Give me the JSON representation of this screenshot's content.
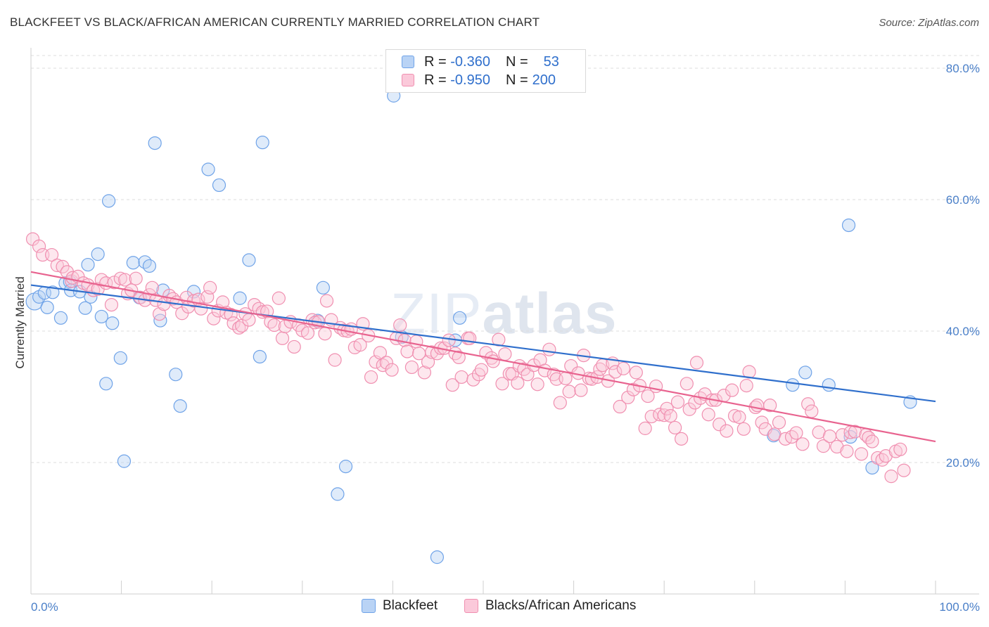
{
  "title": "BLACKFEET VS BLACK/AFRICAN AMERICAN CURRENTLY MARRIED CORRELATION CHART",
  "source": "Source: ZipAtlas.com",
  "watermark": {
    "zip": "ZIP",
    "atlas": "atlas"
  },
  "colors": {
    "blue": "#6fa3e8",
    "blue_line": "#2f6fcc",
    "pink": "#f08fb0",
    "pink_line": "#e8638f",
    "axis_label": "#4a7fc8"
  },
  "legend": {
    "rows": [
      {
        "r_label": "R =",
        "r_value": "-0.360",
        "n_label": "N =",
        "n_value": "53"
      },
      {
        "r_label": "R =",
        "r_value": "-0.950",
        "n_label": "N =",
        "n_value": "200"
      }
    ]
  },
  "bottom_legend": [
    "Blackfeet",
    "Blacks/African Americans"
  ],
  "chart_data": {
    "type": "scatter",
    "title": "BLACKFEET VS BLACK/AFRICAN AMERICAN CURRENTLY MARRIED CORRELATION CHART",
    "ylabel": "Currently Married",
    "xlabel": "",
    "xlim": [
      0,
      100
    ],
    "ylim": [
      0,
      80
    ],
    "x_tick_labels": [
      "0.0%",
      "100.0%"
    ],
    "y_tick_labels": [
      "20.0%",
      "40.0%",
      "60.0%",
      "80.0%"
    ],
    "y_ticks": [
      20,
      40,
      60,
      80
    ],
    "grid": "horizontal dashed",
    "legend_placement": "top-center",
    "series": [
      {
        "name": "Blackfeet",
        "color": "#6fa3e8",
        "trend": {
          "x": [
            0,
            100
          ],
          "y": [
            47.0,
            29.3
          ]
        },
        "points": [
          [
            0.4,
            44.5
          ],
          [
            0.9,
            45.2
          ],
          [
            1.5,
            45.8
          ],
          [
            1.8,
            43.6
          ],
          [
            2.4,
            45.9
          ],
          [
            3.3,
            42.0
          ],
          [
            3.8,
            47.3
          ],
          [
            4.3,
            47.5
          ],
          [
            4.4,
            46.2
          ],
          [
            5.4,
            46.0
          ],
          [
            6.0,
            43.5
          ],
          [
            6.3,
            50.1
          ],
          [
            6.6,
            45.2
          ],
          [
            7.4,
            51.7
          ],
          [
            7.8,
            42.2
          ],
          [
            8.3,
            32.0
          ],
          [
            8.6,
            59.8
          ],
          [
            9.0,
            41.2
          ],
          [
            9.9,
            35.9
          ],
          [
            10.3,
            20.2
          ],
          [
            11.3,
            50.4
          ],
          [
            12.0,
            45.1
          ],
          [
            12.6,
            50.5
          ],
          [
            13.1,
            49.9
          ],
          [
            13.7,
            68.6
          ],
          [
            14.3,
            41.6
          ],
          [
            14.6,
            46.2
          ],
          [
            16.0,
            33.4
          ],
          [
            16.5,
            28.6
          ],
          [
            18.0,
            46.0
          ],
          [
            19.6,
            64.6
          ],
          [
            20.8,
            62.2
          ],
          [
            23.1,
            45.0
          ],
          [
            24.1,
            50.8
          ],
          [
            25.3,
            36.1
          ],
          [
            25.6,
            68.7
          ],
          [
            31.7,
            41.6
          ],
          [
            32.3,
            46.6
          ],
          [
            33.9,
            15.2
          ],
          [
            34.8,
            19.4
          ],
          [
            40.1,
            75.8
          ],
          [
            41.0,
            39.1
          ],
          [
            44.9,
            5.6
          ],
          [
            46.9,
            38.6
          ],
          [
            47.4,
            42.0
          ],
          [
            82.1,
            24.1
          ],
          [
            84.2,
            31.8
          ],
          [
            85.6,
            33.7
          ],
          [
            88.2,
            31.8
          ],
          [
            90.4,
            56.1
          ],
          [
            90.6,
            23.9
          ],
          [
            93.0,
            19.2
          ],
          [
            97.2,
            29.2
          ]
        ]
      },
      {
        "name": "Blacks/African Americans",
        "color": "#f08fb0",
        "trend": {
          "x": [
            0,
            100
          ],
          "y": [
            49.0,
            23.2
          ]
        },
        "points": [
          [
            0.2,
            54.0
          ],
          [
            0.9,
            52.9
          ],
          [
            1.3,
            51.6
          ],
          [
            2.3,
            51.6
          ],
          [
            2.9,
            50.0
          ],
          [
            3.5,
            49.8
          ],
          [
            4.0,
            49.0
          ],
          [
            4.5,
            47.6
          ],
          [
            4.6,
            48.1
          ],
          [
            5.2,
            48.3
          ],
          [
            5.8,
            47.3
          ],
          [
            6.3,
            47.0
          ],
          [
            6.9,
            46.2
          ],
          [
            7.4,
            46.4
          ],
          [
            7.8,
            47.8
          ],
          [
            8.3,
            47.3
          ],
          [
            8.9,
            44.0
          ],
          [
            9.2,
            47.4
          ],
          [
            9.9,
            48.0
          ],
          [
            10.4,
            47.8
          ],
          [
            10.7,
            45.7
          ],
          [
            11.1,
            46.2
          ],
          [
            11.6,
            48.0
          ],
          [
            12.1,
            45.1
          ],
          [
            12.6,
            44.7
          ],
          [
            13.1,
            45.5
          ],
          [
            13.4,
            46.6
          ],
          [
            13.8,
            44.7
          ],
          [
            14.2,
            42.6
          ],
          [
            14.7,
            44.1
          ],
          [
            15.3,
            45.4
          ],
          [
            15.7,
            44.9
          ],
          [
            16.1,
            44.4
          ],
          [
            16.7,
            42.7
          ],
          [
            17.2,
            45.1
          ],
          [
            17.4,
            43.7
          ],
          [
            18.0,
            44.6
          ],
          [
            18.5,
            44.8
          ],
          [
            18.8,
            43.4
          ],
          [
            19.5,
            45.2
          ],
          [
            19.8,
            46.6
          ],
          [
            20.2,
            41.9
          ],
          [
            20.7,
            43.1
          ],
          [
            21.2,
            44.4
          ],
          [
            21.6,
            42.8
          ],
          [
            22.1,
            42.5
          ],
          [
            22.4,
            41.2
          ],
          [
            23.0,
            40.5
          ],
          [
            23.3,
            40.8
          ],
          [
            23.7,
            42.6
          ],
          [
            24.1,
            41.7
          ],
          [
            24.7,
            44.0
          ],
          [
            25.2,
            43.4
          ],
          [
            25.6,
            42.9
          ],
          [
            26.1,
            43.0
          ],
          [
            26.5,
            41.4
          ],
          [
            26.9,
            40.9
          ],
          [
            27.4,
            45.0
          ],
          [
            27.8,
            38.9
          ],
          [
            28.1,
            40.7
          ],
          [
            28.7,
            41.4
          ],
          [
            29.1,
            37.6
          ],
          [
            29.6,
            40.9
          ],
          [
            30.0,
            40.1
          ],
          [
            30.6,
            39.7
          ],
          [
            31.1,
            41.7
          ],
          [
            31.4,
            41.3
          ],
          [
            31.8,
            41.4
          ],
          [
            32.5,
            39.6
          ],
          [
            32.7,
            44.6
          ],
          [
            33.2,
            41.7
          ],
          [
            33.6,
            35.6
          ],
          [
            34.2,
            40.5
          ],
          [
            34.6,
            40.1
          ],
          [
            35.0,
            40.0
          ],
          [
            35.4,
            40.3
          ],
          [
            35.8,
            37.5
          ],
          [
            36.4,
            37.9
          ],
          [
            36.7,
            41.1
          ],
          [
            37.3,
            39.3
          ],
          [
            37.6,
            33.0
          ],
          [
            38.1,
            35.3
          ],
          [
            38.6,
            36.7
          ],
          [
            38.9,
            34.8
          ],
          [
            39.3,
            35.2
          ],
          [
            39.9,
            34.1
          ],
          [
            40.4,
            38.9
          ],
          [
            40.8,
            40.9
          ],
          [
            41.3,
            38.6
          ],
          [
            41.6,
            36.9
          ],
          [
            42.1,
            34.5
          ],
          [
            42.6,
            38.4
          ],
          [
            42.9,
            36.6
          ],
          [
            43.5,
            33.7
          ],
          [
            43.9,
            35.3
          ],
          [
            44.3,
            36.8
          ],
          [
            44.9,
            36.6
          ],
          [
            45.3,
            37.4
          ],
          [
            45.7,
            37.4
          ],
          [
            46.2,
            38.6
          ],
          [
            46.6,
            31.8
          ],
          [
            46.9,
            36.6
          ],
          [
            47.3,
            36.0
          ],
          [
            47.6,
            33.0
          ],
          [
            48.3,
            38.9
          ],
          [
            48.5,
            38.9
          ],
          [
            48.9,
            32.6
          ],
          [
            49.5,
            33.4
          ],
          [
            49.8,
            34.1
          ],
          [
            50.3,
            36.7
          ],
          [
            50.9,
            35.9
          ],
          [
            51.1,
            35.4
          ],
          [
            51.7,
            38.7
          ],
          [
            52.1,
            32.0
          ],
          [
            52.4,
            36.5
          ],
          [
            52.9,
            33.5
          ],
          [
            53.2,
            33.5
          ],
          [
            53.8,
            32.1
          ],
          [
            54.0,
            34.7
          ],
          [
            54.5,
            34.2
          ],
          [
            54.9,
            33.4
          ],
          [
            55.6,
            34.8
          ],
          [
            56.0,
            31.9
          ],
          [
            56.3,
            35.6
          ],
          [
            56.8,
            34.0
          ],
          [
            57.3,
            37.2
          ],
          [
            57.8,
            33.4
          ],
          [
            58.1,
            32.7
          ],
          [
            58.5,
            29.1
          ],
          [
            59.1,
            32.8
          ],
          [
            59.5,
            30.8
          ],
          [
            59.7,
            34.7
          ],
          [
            60.5,
            33.6
          ],
          [
            60.8,
            31.0
          ],
          [
            61.1,
            36.3
          ],
          [
            61.7,
            32.8
          ],
          [
            62.0,
            32.7
          ],
          [
            62.6,
            33.0
          ],
          [
            62.9,
            34.2
          ],
          [
            63.2,
            34.8
          ],
          [
            63.8,
            32.4
          ],
          [
            64.3,
            35.1
          ],
          [
            64.6,
            33.8
          ],
          [
            65.1,
            28.5
          ],
          [
            65.5,
            34.3
          ],
          [
            66.0,
            29.9
          ],
          [
            66.6,
            31.1
          ],
          [
            66.9,
            33.7
          ],
          [
            67.3,
            31.7
          ],
          [
            67.9,
            25.2
          ],
          [
            68.2,
            30.1
          ],
          [
            68.6,
            27.0
          ],
          [
            69.1,
            31.6
          ],
          [
            69.5,
            27.3
          ],
          [
            70.0,
            27.2
          ],
          [
            70.3,
            28.2
          ],
          [
            70.7,
            27.1
          ],
          [
            71.2,
            25.3
          ],
          [
            71.5,
            29.2
          ],
          [
            71.9,
            23.6
          ],
          [
            72.5,
            32.0
          ],
          [
            72.8,
            28.1
          ],
          [
            73.4,
            29.1
          ],
          [
            73.6,
            35.2
          ],
          [
            74.0,
            29.8
          ],
          [
            74.5,
            30.4
          ],
          [
            74.9,
            27.3
          ],
          [
            75.3,
            29.5
          ],
          [
            75.7,
            29.5
          ],
          [
            76.1,
            25.8
          ],
          [
            76.6,
            30.2
          ],
          [
            76.9,
            24.8
          ],
          [
            77.5,
            31.0
          ],
          [
            77.8,
            27.1
          ],
          [
            78.3,
            26.9
          ],
          [
            78.8,
            25.1
          ],
          [
            79.1,
            31.7
          ],
          [
            79.4,
            33.8
          ],
          [
            80.1,
            28.4
          ],
          [
            80.3,
            28.7
          ],
          [
            80.8,
            26.1
          ],
          [
            81.2,
            25.1
          ],
          [
            81.7,
            28.7
          ],
          [
            82.2,
            24.3
          ],
          [
            82.7,
            26.1
          ],
          [
            83.4,
            23.6
          ],
          [
            84.1,
            23.9
          ],
          [
            84.6,
            24.5
          ],
          [
            85.3,
            22.8
          ],
          [
            85.9,
            28.9
          ],
          [
            86.3,
            27.8
          ],
          [
            87.1,
            24.6
          ],
          [
            87.6,
            22.5
          ],
          [
            88.3,
            24.0
          ],
          [
            89.1,
            22.4
          ],
          [
            89.7,
            24.2
          ],
          [
            90.2,
            21.7
          ],
          [
            90.6,
            24.6
          ],
          [
            91.1,
            24.7
          ],
          [
            91.8,
            21.3
          ],
          [
            92.3,
            24.2
          ],
          [
            92.6,
            23.8
          ],
          [
            93.0,
            23.2
          ],
          [
            93.6,
            20.7
          ],
          [
            94.1,
            20.4
          ],
          [
            94.5,
            21.0
          ],
          [
            95.1,
            17.9
          ],
          [
            95.6,
            21.7
          ],
          [
            96.1,
            22.0
          ],
          [
            96.5,
            18.8
          ]
        ]
      }
    ]
  }
}
